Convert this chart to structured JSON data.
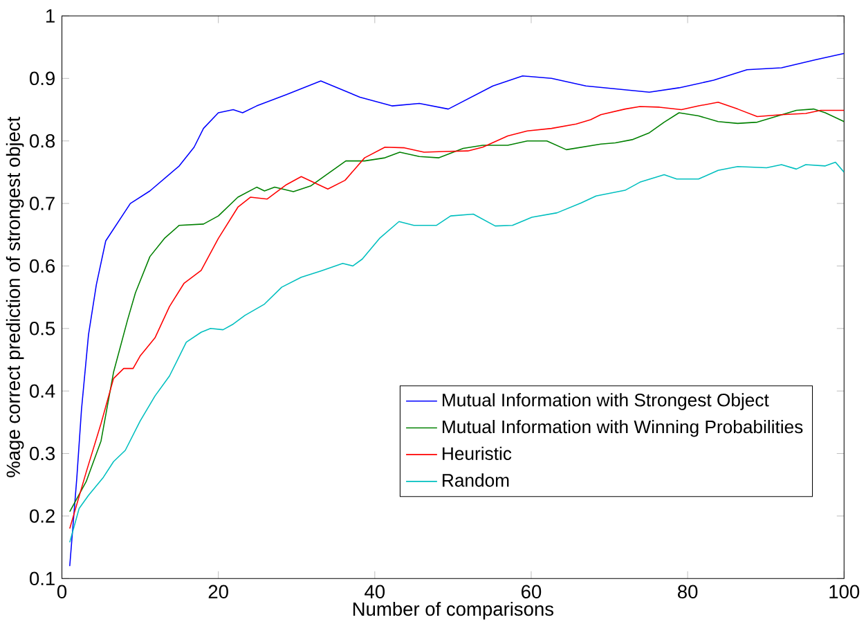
{
  "chart_data": {
    "type": "line",
    "xlabel": "Number of comparisons",
    "ylabel": "%age correct prediction of strongest object",
    "xlim": [
      0,
      100
    ],
    "ylim": [
      0.1,
      1
    ],
    "xticks": [
      0,
      20,
      40,
      60,
      80,
      100
    ],
    "yticks": [
      0.1,
      0.2,
      0.3,
      0.4,
      0.5,
      0.6,
      0.7,
      0.8,
      0.9,
      1
    ],
    "legend": "bottom right",
    "series": [
      {
        "name": "Mutual Information with Strongest Object",
        "color": "#0000ff",
        "x": [
          1,
          1.9,
          2.5,
          3.4,
          4.4,
          5.6,
          8.75,
          11.25,
          15,
          16.9,
          18.1,
          20,
          21.9,
          23.1,
          24.9,
          28.7,
          33.1,
          38.1,
          42.2,
          45.7,
          49.4,
          55.1,
          58.9,
          62.6,
          67,
          75.1,
          78.9,
          83.3,
          87.6,
          92,
          96.4,
          100
        ],
        "values": [
          0.12,
          0.26,
          0.37,
          0.49,
          0.57,
          0.64,
          0.7,
          0.72,
          0.76,
          0.79,
          0.82,
          0.845,
          0.85,
          0.845,
          0.856,
          0.874,
          0.896,
          0.87,
          0.856,
          0.86,
          0.851,
          0.888,
          0.904,
          0.9,
          0.888,
          0.878,
          0.885,
          0.897,
          0.914,
          0.917,
          0.93,
          0.94
        ]
      },
      {
        "name": "Mutual Information with Winning Probabilities",
        "color": "#008000",
        "x": [
          1,
          3.1,
          5,
          6.6,
          8.4,
          9.4,
          11.25,
          13.1,
          15,
          18.1,
          20,
          22.5,
          24.9,
          25.9,
          27.2,
          29.6,
          31.8,
          36.3,
          38.7,
          41.3,
          43.2,
          45.7,
          48.2,
          51.3,
          53.8,
          57,
          59.5,
          62,
          64.5,
          68.9,
          70.75,
          72.9,
          75.1,
          77,
          78.9,
          81.4,
          83.9,
          86.4,
          88.9,
          90.75,
          93.9,
          96.1,
          97.6,
          100
        ],
        "values": [
          0.207,
          0.255,
          0.32,
          0.43,
          0.514,
          0.557,
          0.615,
          0.644,
          0.665,
          0.667,
          0.68,
          0.71,
          0.726,
          0.72,
          0.726,
          0.719,
          0.728,
          0.768,
          0.768,
          0.773,
          0.782,
          0.775,
          0.773,
          0.788,
          0.793,
          0.793,
          0.8,
          0.8,
          0.786,
          0.795,
          0.797,
          0.802,
          0.813,
          0.83,
          0.845,
          0.84,
          0.831,
          0.828,
          0.83,
          0.837,
          0.849,
          0.851,
          0.845,
          0.831
        ]
      },
      {
        "name": "Heuristic",
        "color": "#ff0000",
        "x": [
          1,
          3.1,
          5,
          6.6,
          7.9,
          9.1,
          10,
          11.9,
          13.75,
          15.6,
          17.8,
          20,
          22.5,
          24.1,
          26.25,
          28.7,
          30.6,
          34,
          36.2,
          38.7,
          41.3,
          43.8,
          46.3,
          48.8,
          51.9,
          53.8,
          57,
          59.5,
          62.6,
          65.75,
          67.6,
          68.9,
          72,
          73.9,
          76.4,
          79.2,
          81.4,
          83.9,
          86.4,
          88.9,
          92,
          95.1,
          97,
          100
        ],
        "values": [
          0.18,
          0.27,
          0.348,
          0.42,
          0.436,
          0.436,
          0.456,
          0.485,
          0.535,
          0.572,
          0.593,
          0.644,
          0.694,
          0.71,
          0.707,
          0.73,
          0.743,
          0.723,
          0.737,
          0.773,
          0.79,
          0.789,
          0.782,
          0.783,
          0.784,
          0.79,
          0.808,
          0.816,
          0.82,
          0.827,
          0.834,
          0.842,
          0.851,
          0.855,
          0.854,
          0.85,
          0.856,
          0.862,
          0.851,
          0.839,
          0.842,
          0.844,
          0.849,
          0.849
        ]
      },
      {
        "name": "Random",
        "color": "#00bfbf",
        "x": [
          1,
          2.2,
          3.4,
          5.3,
          6.6,
          8.1,
          10,
          11.9,
          13.75,
          15.9,
          17.8,
          19,
          20.6,
          21.9,
          23.4,
          25.9,
          28.1,
          30.6,
          33.1,
          35.9,
          37.2,
          38.4,
          40.6,
          43.1,
          45,
          47.9,
          49.7,
          52.6,
          55.4,
          57.6,
          60.1,
          63.3,
          66.4,
          68.3,
          72,
          73.9,
          77,
          78.6,
          81.4,
          83.9,
          86.4,
          90.1,
          92,
          93.9,
          95.1,
          97.6,
          98.9,
          100
        ],
        "values": [
          0.158,
          0.212,
          0.233,
          0.262,
          0.287,
          0.305,
          0.352,
          0.392,
          0.424,
          0.478,
          0.494,
          0.5,
          0.498,
          0.507,
          0.521,
          0.539,
          0.566,
          0.582,
          0.592,
          0.604,
          0.6,
          0.611,
          0.644,
          0.671,
          0.665,
          0.665,
          0.68,
          0.683,
          0.664,
          0.665,
          0.678,
          0.685,
          0.701,
          0.712,
          0.721,
          0.734,
          0.746,
          0.739,
          0.739,
          0.753,
          0.759,
          0.757,
          0.762,
          0.755,
          0.762,
          0.76,
          0.766,
          0.75
        ]
      }
    ]
  }
}
